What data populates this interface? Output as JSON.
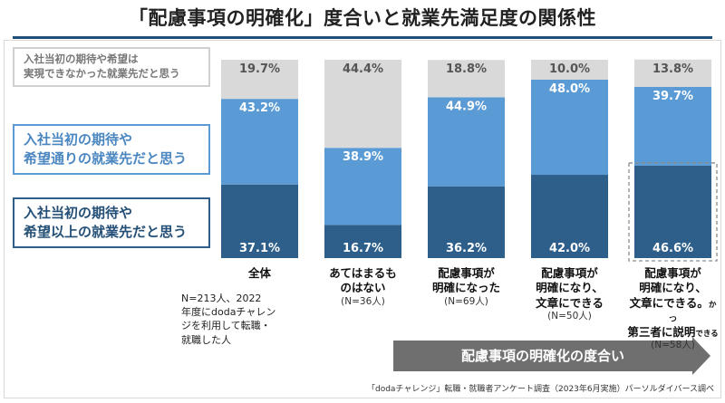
{
  "title": "「配慮事項の明確化」度合いと就業先満足度の関係性",
  "legend": {
    "gray": {
      "lines": [
        "入社当初の期待や希望は",
        "実現できなかった就業先だと思う"
      ],
      "color": "#d9d9d9"
    },
    "light": {
      "lines": [
        "入社当初の期待や",
        "希望通りの就業先だと思う"
      ],
      "color": "#5b9bd5"
    },
    "dark": {
      "lines": [
        "入社当初の期待や",
        "希望以上の就業先だと思う"
      ],
      "color": "#2e5f8a"
    }
  },
  "chart_data": {
    "type": "bar",
    "stacked": true,
    "ylim": [
      0,
      100
    ],
    "categories": [
      "全体",
      "あてはまるものはない",
      "配慮事項が明確になった",
      "配慮事項が明確になり、文章にできる",
      "配慮事項が明確になり、文章にできる。かつ第三者に説明できる"
    ],
    "series": [
      {
        "name": "入社当初の期待や希望以上の就業先だと思う",
        "values": [
          37.1,
          16.7,
          36.2,
          42.0,
          46.6
        ],
        "labels": [
          "37.1%",
          "16.7%",
          "36.2%",
          "42.0%",
          "46.6%"
        ],
        "color": "#2e5f8a"
      },
      {
        "name": "入社当初の期待や希望通りの就業先だと思う",
        "values": [
          43.2,
          38.9,
          44.9,
          48.0,
          39.7
        ],
        "labels": [
          "43.2%",
          "38.9%",
          "44.9%",
          "48.0%",
          "39.7%"
        ],
        "color": "#5b9bd5"
      },
      {
        "name": "入社当初の期待や希望は実現できなかった就業先だと思う",
        "values": [
          19.7,
          44.4,
          18.8,
          10.0,
          13.8
        ],
        "labels": [
          "19.7%",
          "44.4%",
          "18.8%",
          "10.0%",
          "13.8%"
        ],
        "color": "#d9d9d9"
      }
    ],
    "highlight_category_index": 4
  },
  "categories": [
    {
      "lines": [
        {
          "text": "全体"
        }
      ],
      "n": ""
    },
    {
      "lines": [
        {
          "text": "あてはまるも"
        },
        {
          "text": "のはない"
        }
      ],
      "n": "(N=36人)"
    },
    {
      "lines": [
        {
          "text": "配慮事項が"
        },
        {
          "text": "明確になった"
        }
      ],
      "n": "(N=69人)"
    },
    {
      "lines": [
        {
          "text": "配慮事項が"
        },
        {
          "text": "明確になり、"
        },
        {
          "text": "文章にできる"
        }
      ],
      "n": "(N=50人)"
    },
    {
      "lines": [
        {
          "text": "配慮事項が"
        },
        {
          "text": "明確になり、"
        },
        {
          "text": "文章にできる。",
          "small": "かつ"
        },
        {
          "text": "第三者に説明",
          "small": "できる"
        }
      ],
      "n": "(N=58人)"
    }
  ],
  "note_lines": [
    "N=213人、2022",
    "年度にdodaチャレン",
    "ジを利用して転職・",
    "就職した人"
  ],
  "arrow_label": "配慮事項の明確化の度合い",
  "footer": "「dodaチャレンジ」転職・就職者アンケート調査（2023年6月実施）パーソルダイバース調べ"
}
